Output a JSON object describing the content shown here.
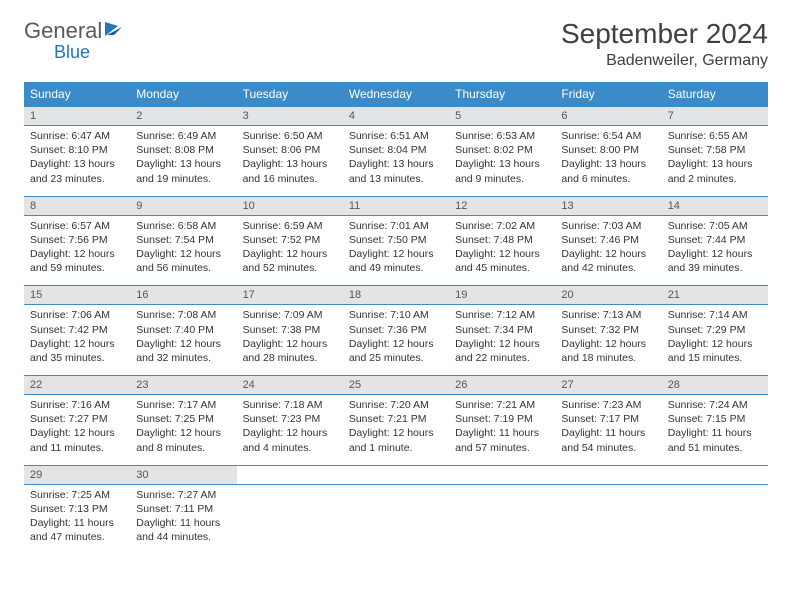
{
  "brand": {
    "name1": "General",
    "name2": "Blue"
  },
  "title": "September 2024",
  "location": "Badenweiler, Germany",
  "colors": {
    "header_bg": "#3b8bc9",
    "header_text": "#ffffff",
    "daynum_bg": "#e4e4e4",
    "rule": "#3b8bc9",
    "body_text": "#333333"
  },
  "weekdays": [
    "Sunday",
    "Monday",
    "Tuesday",
    "Wednesday",
    "Thursday",
    "Friday",
    "Saturday"
  ],
  "weeks": [
    [
      {
        "day": "1",
        "sunrise": "Sunrise: 6:47 AM",
        "sunset": "Sunset: 8:10 PM",
        "day1": "Daylight: 13 hours",
        "day2": "and 23 minutes."
      },
      {
        "day": "2",
        "sunrise": "Sunrise: 6:49 AM",
        "sunset": "Sunset: 8:08 PM",
        "day1": "Daylight: 13 hours",
        "day2": "and 19 minutes."
      },
      {
        "day": "3",
        "sunrise": "Sunrise: 6:50 AM",
        "sunset": "Sunset: 8:06 PM",
        "day1": "Daylight: 13 hours",
        "day2": "and 16 minutes."
      },
      {
        "day": "4",
        "sunrise": "Sunrise: 6:51 AM",
        "sunset": "Sunset: 8:04 PM",
        "day1": "Daylight: 13 hours",
        "day2": "and 13 minutes."
      },
      {
        "day": "5",
        "sunrise": "Sunrise: 6:53 AM",
        "sunset": "Sunset: 8:02 PM",
        "day1": "Daylight: 13 hours",
        "day2": "and 9 minutes."
      },
      {
        "day": "6",
        "sunrise": "Sunrise: 6:54 AM",
        "sunset": "Sunset: 8:00 PM",
        "day1": "Daylight: 13 hours",
        "day2": "and 6 minutes."
      },
      {
        "day": "7",
        "sunrise": "Sunrise: 6:55 AM",
        "sunset": "Sunset: 7:58 PM",
        "day1": "Daylight: 13 hours",
        "day2": "and 2 minutes."
      }
    ],
    [
      {
        "day": "8",
        "sunrise": "Sunrise: 6:57 AM",
        "sunset": "Sunset: 7:56 PM",
        "day1": "Daylight: 12 hours",
        "day2": "and 59 minutes."
      },
      {
        "day": "9",
        "sunrise": "Sunrise: 6:58 AM",
        "sunset": "Sunset: 7:54 PM",
        "day1": "Daylight: 12 hours",
        "day2": "and 56 minutes."
      },
      {
        "day": "10",
        "sunrise": "Sunrise: 6:59 AM",
        "sunset": "Sunset: 7:52 PM",
        "day1": "Daylight: 12 hours",
        "day2": "and 52 minutes."
      },
      {
        "day": "11",
        "sunrise": "Sunrise: 7:01 AM",
        "sunset": "Sunset: 7:50 PM",
        "day1": "Daylight: 12 hours",
        "day2": "and 49 minutes."
      },
      {
        "day": "12",
        "sunrise": "Sunrise: 7:02 AM",
        "sunset": "Sunset: 7:48 PM",
        "day1": "Daylight: 12 hours",
        "day2": "and 45 minutes."
      },
      {
        "day": "13",
        "sunrise": "Sunrise: 7:03 AM",
        "sunset": "Sunset: 7:46 PM",
        "day1": "Daylight: 12 hours",
        "day2": "and 42 minutes."
      },
      {
        "day": "14",
        "sunrise": "Sunrise: 7:05 AM",
        "sunset": "Sunset: 7:44 PM",
        "day1": "Daylight: 12 hours",
        "day2": "and 39 minutes."
      }
    ],
    [
      {
        "day": "15",
        "sunrise": "Sunrise: 7:06 AM",
        "sunset": "Sunset: 7:42 PM",
        "day1": "Daylight: 12 hours",
        "day2": "and 35 minutes."
      },
      {
        "day": "16",
        "sunrise": "Sunrise: 7:08 AM",
        "sunset": "Sunset: 7:40 PM",
        "day1": "Daylight: 12 hours",
        "day2": "and 32 minutes."
      },
      {
        "day": "17",
        "sunrise": "Sunrise: 7:09 AM",
        "sunset": "Sunset: 7:38 PM",
        "day1": "Daylight: 12 hours",
        "day2": "and 28 minutes."
      },
      {
        "day": "18",
        "sunrise": "Sunrise: 7:10 AM",
        "sunset": "Sunset: 7:36 PM",
        "day1": "Daylight: 12 hours",
        "day2": "and 25 minutes."
      },
      {
        "day": "19",
        "sunrise": "Sunrise: 7:12 AM",
        "sunset": "Sunset: 7:34 PM",
        "day1": "Daylight: 12 hours",
        "day2": "and 22 minutes."
      },
      {
        "day": "20",
        "sunrise": "Sunrise: 7:13 AM",
        "sunset": "Sunset: 7:32 PM",
        "day1": "Daylight: 12 hours",
        "day2": "and 18 minutes."
      },
      {
        "day": "21",
        "sunrise": "Sunrise: 7:14 AM",
        "sunset": "Sunset: 7:29 PM",
        "day1": "Daylight: 12 hours",
        "day2": "and 15 minutes."
      }
    ],
    [
      {
        "day": "22",
        "sunrise": "Sunrise: 7:16 AM",
        "sunset": "Sunset: 7:27 PM",
        "day1": "Daylight: 12 hours",
        "day2": "and 11 minutes."
      },
      {
        "day": "23",
        "sunrise": "Sunrise: 7:17 AM",
        "sunset": "Sunset: 7:25 PM",
        "day1": "Daylight: 12 hours",
        "day2": "and 8 minutes."
      },
      {
        "day": "24",
        "sunrise": "Sunrise: 7:18 AM",
        "sunset": "Sunset: 7:23 PM",
        "day1": "Daylight: 12 hours",
        "day2": "and 4 minutes."
      },
      {
        "day": "25",
        "sunrise": "Sunrise: 7:20 AM",
        "sunset": "Sunset: 7:21 PM",
        "day1": "Daylight: 12 hours",
        "day2": "and 1 minute."
      },
      {
        "day": "26",
        "sunrise": "Sunrise: 7:21 AM",
        "sunset": "Sunset: 7:19 PM",
        "day1": "Daylight: 11 hours",
        "day2": "and 57 minutes."
      },
      {
        "day": "27",
        "sunrise": "Sunrise: 7:23 AM",
        "sunset": "Sunset: 7:17 PM",
        "day1": "Daylight: 11 hours",
        "day2": "and 54 minutes."
      },
      {
        "day": "28",
        "sunrise": "Sunrise: 7:24 AM",
        "sunset": "Sunset: 7:15 PM",
        "day1": "Daylight: 11 hours",
        "day2": "and 51 minutes."
      }
    ],
    [
      {
        "day": "29",
        "sunrise": "Sunrise: 7:25 AM",
        "sunset": "Sunset: 7:13 PM",
        "day1": "Daylight: 11 hours",
        "day2": "and 47 minutes."
      },
      {
        "day": "30",
        "sunrise": "Sunrise: 7:27 AM",
        "sunset": "Sunset: 7:11 PM",
        "day1": "Daylight: 11 hours",
        "day2": "and 44 minutes."
      },
      null,
      null,
      null,
      null,
      null
    ]
  ]
}
